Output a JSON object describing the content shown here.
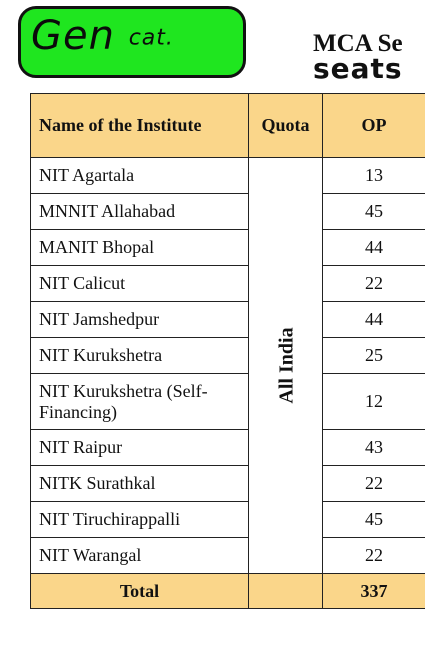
{
  "annotation": {
    "text": "Gen",
    "subtext": "cat."
  },
  "header": {
    "title": "MCA Se",
    "handwritten": "seats"
  },
  "table": {
    "columns": [
      "Name of the Institute",
      "Quota",
      "OP"
    ],
    "quota": "All India",
    "rows": [
      {
        "name": "NIT Agartala",
        "op": "13"
      },
      {
        "name": "MNNIT Allahabad",
        "op": "45"
      },
      {
        "name": "MANIT Bhopal",
        "op": "44"
      },
      {
        "name": "NIT Calicut",
        "op": "22"
      },
      {
        "name": "NIT Jamshedpur",
        "op": "44"
      },
      {
        "name": "NIT Kurukshetra",
        "op": "25"
      },
      {
        "name": "NIT Kurukshetra (Self-Financing)",
        "op": "12"
      },
      {
        "name": "NIT Raipur",
        "op": "43"
      },
      {
        "name": "NITK Surathkal",
        "op": "22"
      },
      {
        "name": "NIT Tiruchirappalli",
        "op": "45"
      },
      {
        "name": "NIT Warangal",
        "op": "22"
      }
    ],
    "total": {
      "label": "Total",
      "op": "337"
    }
  },
  "colors": {
    "header_bg": "#fad68a",
    "annotation_bg": "#1fe61f"
  }
}
